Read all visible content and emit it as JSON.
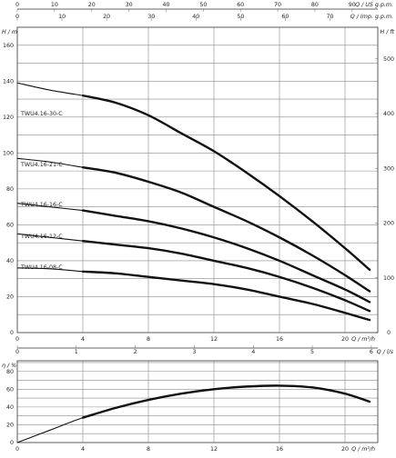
{
  "chart_data": [
    {
      "type": "line",
      "panel": "head",
      "x_axis_bottom": {
        "label": "Q / m³/h",
        "ticks": [
          "0",
          "4",
          "8",
          "12",
          "16",
          "20"
        ],
        "range": [
          0,
          22
        ]
      },
      "x_axis_top_1": {
        "label": "Q / US g.p.m.",
        "ticks": [
          "0",
          "10",
          "20",
          "30",
          "40",
          "50",
          "60",
          "70",
          "80",
          "90"
        ],
        "range": [
          0,
          96.9
        ]
      },
      "x_axis_top_2": {
        "label": "Q / Imp. g.p.m.",
        "ticks": [
          "0",
          "10",
          "20",
          "30",
          "40",
          "50",
          "60",
          "70"
        ],
        "range": [
          0,
          80.7
        ]
      },
      "x_axis_middle": {
        "label": "Q / l/s",
        "ticks": [
          "0",
          "1",
          "2",
          "3",
          "4",
          "5",
          "6"
        ],
        "range": [
          0,
          6.11
        ]
      },
      "y_axis_left": {
        "label": "H / m",
        "ticks": [
          "0",
          "10",
          "20",
          "30",
          "40",
          "50",
          "60",
          "70",
          "80",
          "90",
          "100",
          "110",
          "120",
          "130",
          "140",
          "150",
          "160"
        ],
        "range": [
          0,
          170
        ]
      },
      "y_axis_right": {
        "label": "H / ft",
        "ticks": [
          "0",
          "100",
          "200",
          "300",
          "400",
          "500"
        ],
        "range": [
          0,
          557.7
        ]
      },
      "grid": true,
      "series": [
        {
          "name": "TWU4.16-30-C",
          "x": [
            0,
            2,
            4,
            6,
            8,
            10,
            12,
            14,
            16,
            18,
            20,
            21.5
          ],
          "y": [
            139,
            135,
            132,
            128,
            121,
            111,
            101,
            89,
            76,
            62,
            47,
            35
          ]
        },
        {
          "name": "TWU4.16-21-C",
          "x": [
            0,
            2,
            4,
            6,
            8,
            10,
            12,
            14,
            16,
            18,
            20,
            21.5
          ],
          "y": [
            97,
            95,
            92,
            89,
            84,
            78,
            70,
            62,
            53,
            43,
            32,
            23
          ]
        },
        {
          "name": "TWU4.16-16-C",
          "x": [
            0,
            2,
            4,
            6,
            8,
            10,
            12,
            14,
            16,
            18,
            20,
            21.5
          ],
          "y": [
            72,
            70,
            68,
            65,
            62,
            58,
            53,
            47,
            40,
            32,
            24,
            17
          ]
        },
        {
          "name": "TWU4.16-12-C",
          "x": [
            0,
            2,
            4,
            6,
            8,
            10,
            12,
            14,
            16,
            18,
            20,
            21.5
          ],
          "y": [
            55,
            53,
            51,
            49,
            47,
            44,
            40,
            36,
            31,
            25,
            18,
            12
          ]
        },
        {
          "name": "TWU4.16-08-C",
          "x": [
            0,
            2,
            4,
            6,
            8,
            10,
            12,
            14,
            16,
            18,
            20,
            21.5
          ],
          "y": [
            36,
            35.5,
            34,
            33,
            31,
            29,
            27,
            24,
            20,
            16,
            11,
            7
          ]
        }
      ]
    },
    {
      "type": "line",
      "panel": "efficiency",
      "x_axis": {
        "label": "Q / m³/h",
        "ticks": [
          "0",
          "4",
          "8",
          "12",
          "16",
          "20"
        ],
        "range": [
          0,
          22
        ]
      },
      "y_axis": {
        "label": "η / %",
        "ticks": [
          "0",
          "20",
          "40",
          "60",
          "80"
        ],
        "range": [
          0,
          92
        ]
      },
      "grid": true,
      "series": [
        {
          "name": "",
          "x": [
            0,
            2,
            4,
            6,
            8,
            10,
            12,
            14,
            16,
            18,
            20,
            21.5
          ],
          "y": [
            0,
            14,
            28,
            39,
            48,
            55,
            60,
            63,
            64,
            62,
            55,
            46
          ]
        }
      ]
    }
  ]
}
